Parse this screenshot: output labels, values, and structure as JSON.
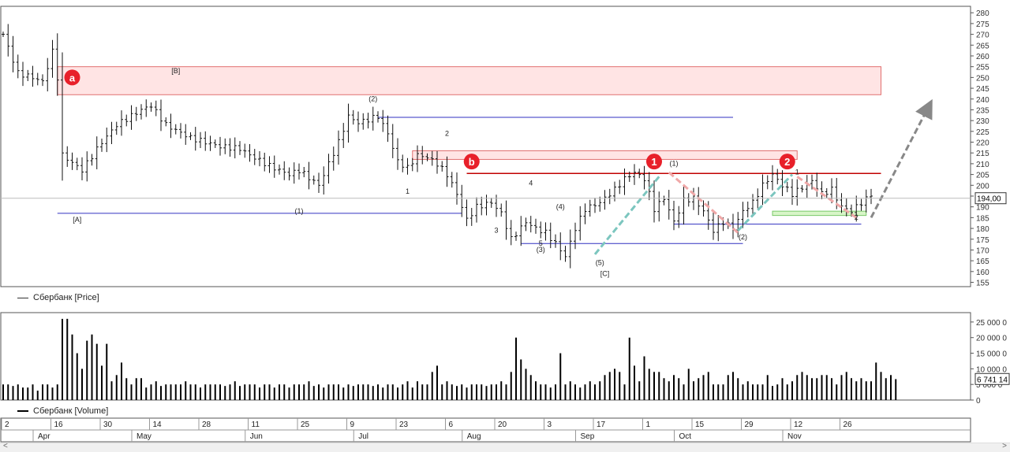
{
  "legends": {
    "price": "Сбербанк [Price]",
    "volume": "Сбербанк [Volume]"
  },
  "colors": {
    "bar": "#111111",
    "support": "#3030c0",
    "resistance": "#c00000",
    "zone_fill": "#ffe4e4",
    "zone_stroke": "#e07070",
    "green_zone": "#d8f5c8",
    "marker": "#e8202a",
    "teal": "#7cc6bf",
    "pink": "#f0a8a8",
    "arrow": "#888888"
  },
  "price_axis": {
    "ticks": [
      280,
      275,
      270,
      265,
      260,
      255,
      250,
      245,
      240,
      235,
      230,
      225,
      220,
      215,
      210,
      205,
      200,
      195,
      190,
      185,
      180,
      175,
      170,
      165,
      160,
      155
    ],
    "min": 153,
    "max": 283,
    "current_label": "194,00",
    "current_value": 194
  },
  "volume_axis": {
    "ticks": [
      {
        "v": 25000000,
        "label": "25 000 0"
      },
      {
        "v": 20000000,
        "label": "20 000 0"
      },
      {
        "v": 15000000,
        "label": "15 000 0"
      },
      {
        "v": 10000000,
        "label": "10 000 0"
      },
      {
        "v": 5000000,
        "label": "5 000 0"
      },
      {
        "v": 0,
        "label": "0"
      }
    ],
    "max": 28000000,
    "current_label": "6 741 14",
    "current_value": 6741140
  },
  "date_axis": {
    "days": [
      {
        "label": "2",
        "i": 0
      },
      {
        "label": "16",
        "i": 10
      },
      {
        "label": "30",
        "i": 20
      },
      {
        "label": "14",
        "i": 30
      },
      {
        "label": "28",
        "i": 40
      },
      {
        "label": "11",
        "i": 50
      },
      {
        "label": "25",
        "i": 60
      },
      {
        "label": "9",
        "i": 70
      },
      {
        "label": "23",
        "i": 80
      },
      {
        "label": "6",
        "i": 90
      },
      {
        "label": "20",
        "i": 100
      },
      {
        "label": "3",
        "i": 110
      },
      {
        "label": "17",
        "i": 120
      },
      {
        "label": "1",
        "i": 130
      },
      {
        "label": "15",
        "i": 140
      },
      {
        "label": "29",
        "i": 150
      },
      {
        "label": "12",
        "i": 160
      },
      {
        "label": "26",
        "i": 170
      }
    ],
    "months": [
      {
        "label": "Apr",
        "i": 0
      },
      {
        "label": "May",
        "i": 20
      },
      {
        "label": "Jun",
        "i": 43
      },
      {
        "label": "Jul",
        "i": 65
      },
      {
        "label": "Aug",
        "i": 87
      },
      {
        "label": "Sep",
        "i": 110
      },
      {
        "label": "Oct",
        "i": 130
      },
      {
        "label": "Nov",
        "i": 152
      }
    ]
  },
  "chart_data": {
    "type": "bar",
    "ohlc_keypoints": [
      [
        0,
        270
      ],
      [
        3,
        252
      ],
      [
        6,
        250
      ],
      [
        8,
        248
      ],
      [
        10,
        262
      ],
      [
        11,
        250
      ],
      [
        12,
        214
      ],
      [
        16,
        207
      ],
      [
        20,
        220
      ],
      [
        23,
        228
      ],
      [
        28,
        235
      ],
      [
        30,
        237
      ],
      [
        33,
        228
      ],
      [
        38,
        222
      ],
      [
        44,
        218
      ],
      [
        48,
        217
      ],
      [
        50,
        214
      ],
      [
        54,
        209
      ],
      [
        58,
        205
      ],
      [
        60,
        207
      ],
      [
        64,
        200
      ],
      [
        68,
        220
      ],
      [
        70,
        232
      ],
      [
        72,
        229
      ],
      [
        76,
        232
      ],
      [
        78,
        224
      ],
      [
        80,
        211
      ],
      [
        82,
        208
      ],
      [
        84,
        214
      ],
      [
        86,
        213
      ],
      [
        88,
        210
      ],
      [
        90,
        205
      ],
      [
        92,
        196
      ],
      [
        94,
        184
      ],
      [
        96,
        190
      ],
      [
        99,
        192
      ],
      [
        101,
        187
      ],
      [
        103,
        175
      ],
      [
        106,
        183
      ],
      [
        108,
        180
      ],
      [
        110,
        178
      ],
      [
        112,
        173
      ],
      [
        114,
        167
      ],
      [
        116,
        180
      ],
      [
        118,
        189
      ],
      [
        121,
        192
      ],
      [
        124,
        198
      ],
      [
        126,
        203
      ],
      [
        128,
        206
      ],
      [
        130,
        203
      ],
      [
        132,
        189
      ],
      [
        134,
        194
      ],
      [
        136,
        183
      ],
      [
        138,
        193
      ],
      [
        140,
        194
      ],
      [
        142,
        188
      ],
      [
        144,
        179
      ],
      [
        146,
        183
      ],
      [
        148,
        180
      ],
      [
        150,
        188
      ],
      [
        152,
        192
      ],
      [
        154,
        200
      ],
      [
        156,
        205
      ],
      [
        158,
        200
      ],
      [
        160,
        196
      ],
      [
        162,
        199
      ],
      [
        164,
        202
      ],
      [
        166,
        196
      ],
      [
        168,
        198
      ],
      [
        170,
        190
      ],
      [
        172,
        188
      ],
      [
        174,
        192
      ],
      [
        176,
        195
      ]
    ],
    "volume_millions": [
      5,
      5,
      4.5,
      5,
      4,
      4,
      5,
      3,
      5,
      5,
      4,
      5,
      26,
      26,
      21,
      15,
      10,
      19,
      21,
      18,
      11,
      18,
      6,
      8,
      12,
      7,
      5,
      7,
      7,
      4,
      5,
      6,
      4.5,
      5,
      5,
      5,
      5,
      6,
      5,
      5,
      4,
      5,
      5,
      5,
      5,
      4.5,
      5,
      6,
      4.5,
      5,
      5,
      5,
      4,
      5,
      5,
      4,
      5,
      5,
      4,
      5,
      5,
      5,
      6,
      4.5,
      5,
      4,
      5,
      5,
      5,
      4,
      5,
      4.5,
      5,
      5,
      5,
      4.5,
      5,
      4,
      5,
      5,
      4,
      5,
      6,
      4,
      6,
      5,
      5,
      9,
      11,
      5,
      6,
      5,
      4.5,
      5,
      4,
      5,
      5,
      5,
      4.5,
      5,
      5,
      6,
      5,
      9,
      20,
      13,
      10,
      8,
      6,
      5,
      5,
      4,
      5,
      15,
      5,
      6,
      5,
      4,
      5,
      6,
      5,
      6,
      8,
      9,
      10,
      9,
      5,
      20,
      11,
      6,
      14,
      10,
      9,
      9,
      7,
      6,
      8,
      7,
      5,
      10,
      6,
      7,
      8,
      9,
      5,
      5,
      5,
      8,
      9,
      7,
      5,
      6,
      5,
      5,
      5,
      8,
      4.5,
      5,
      7,
      5,
      6,
      8,
      9,
      8,
      7,
      7,
      8,
      8,
      7,
      5,
      8,
      9,
      7,
      6,
      7,
      6,
      6,
      12,
      9,
      7,
      8,
      6.7
    ],
    "levels": [
      {
        "type": "support",
        "value": 187,
        "from": 11,
        "to": 93
      },
      {
        "type": "support",
        "value": 231.5,
        "from": 76,
        "to": 148
      },
      {
        "type": "support",
        "value": 173,
        "from": 105,
        "to": 150
      },
      {
        "type": "support",
        "value": 182,
        "from": 136,
        "to": 174
      },
      {
        "type": "resistance",
        "value": 205.5,
        "from": 94,
        "to": 178
      }
    ],
    "zones": [
      {
        "style": "red",
        "top": 255,
        "bottom": 242,
        "from": 11,
        "to": 178
      },
      {
        "style": "red",
        "top": 216,
        "bottom": 212,
        "from": 83,
        "to": 161
      },
      {
        "style": "green",
        "top": 188,
        "bottom": 186,
        "from": 156,
        "to": 175
      }
    ],
    "markers": [
      {
        "label": "a",
        "i": 14,
        "value": 250
      },
      {
        "label": "b",
        "i": 95,
        "value": 211
      },
      {
        "label": "1",
        "i": 132,
        "value": 211
      },
      {
        "label": "2",
        "i": 159,
        "value": 211
      }
    ],
    "wave_labels": [
      {
        "t": "[A]",
        "i": 15,
        "value": 183
      },
      {
        "t": "[B]",
        "i": 35,
        "value": 252
      },
      {
        "t": "(1)",
        "i": 60,
        "value": 187
      },
      {
        "t": "(2)",
        "i": 75,
        "value": 239
      },
      {
        "t": "1",
        "i": 82,
        "value": 196
      },
      {
        "t": "2",
        "i": 90,
        "value": 223
      },
      {
        "t": "3",
        "i": 100,
        "value": 178
      },
      {
        "t": "4",
        "i": 107,
        "value": 200
      },
      {
        "t": "(4)",
        "i": 113,
        "value": 189
      },
      {
        "t": "5",
        "i": 109,
        "value": 172
      },
      {
        "t": "(3)",
        "i": 109,
        "value": 169
      },
      {
        "t": "(5)",
        "i": 121,
        "value": 163
      },
      {
        "t": "[C]",
        "i": 122,
        "value": 158
      },
      {
        "t": "(1)",
        "i": 136,
        "value": 209
      },
      {
        "t": "(2)",
        "i": 150,
        "value": 175
      },
      {
        "t": "1",
        "i": 161,
        "value": 205
      },
      {
        "t": "2",
        "i": 173,
        "value": 184
      }
    ],
    "arrows": [
      {
        "style": "teal",
        "from": [
          120,
          168
        ],
        "to": [
          133,
          204
        ]
      },
      {
        "style": "teal",
        "from": [
          149,
          179
        ],
        "to": [
          160,
          205
        ]
      },
      {
        "style": "pink",
        "from": [
          135,
          206
        ],
        "to": [
          149,
          178
        ]
      },
      {
        "style": "pink",
        "from": [
          161,
          204
        ],
        "to": [
          173,
          185
        ]
      },
      {
        "style": "gray",
        "from": [
          176,
          185
        ],
        "to": [
          188,
          238
        ]
      }
    ]
  }
}
